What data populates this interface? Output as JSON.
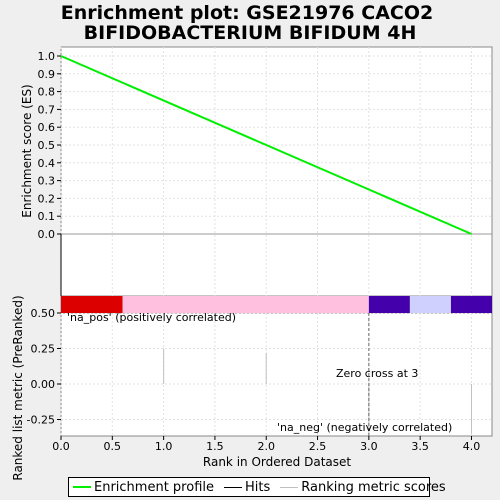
{
  "chart_data": {
    "type": "line",
    "title_line1": "Enrichment plot: GSE21976 CACO2",
    "title_line2": "BIFIDOBACTERIUM BIFIDUM 4H",
    "xlabel": "Rank in Ordered Dataset",
    "ylabel_top": "Enrichment score (ES)",
    "ylabel_bottom": "Ranked list metric (PreRanked)",
    "xlim": [
      0,
      4.2
    ],
    "x_ticks": [
      "0.0",
      "0.5",
      "1.0",
      "1.5",
      "2.0",
      "2.5",
      "3.0",
      "3.5",
      "4.0"
    ],
    "x_tick_values": [
      0,
      0.5,
      1,
      1.5,
      2,
      2.5,
      3,
      3.5,
      4
    ],
    "es_ylim": [
      0,
      1.05
    ],
    "es_ticks": [
      "0.0",
      "0.1",
      "0.2",
      "0.3",
      "0.4",
      "0.5",
      "0.6",
      "0.7",
      "0.8",
      "0.9",
      "1.0"
    ],
    "es_tick_values": [
      0,
      0.1,
      0.2,
      0.3,
      0.4,
      0.5,
      0.6,
      0.7,
      0.8,
      0.9,
      1.0
    ],
    "es_series": {
      "name": "Enrichment profile",
      "x": [
        0,
        4
      ],
      "y": [
        1.0,
        0.0
      ],
      "color": "#00ee00"
    },
    "hits_x": [
      0
    ],
    "metric_ylim": [
      -0.35,
      0.55
    ],
    "metric_ticks": [
      "0.50",
      "0.25",
      "0.00",
      "-0.25"
    ],
    "metric_tick_values": [
      0.5,
      0.25,
      0,
      -0.25
    ],
    "metric_points": [
      {
        "x": 1,
        "y": 0.25
      },
      {
        "x": 2,
        "y": 0.22
      },
      {
        "x": 3,
        "y": -0.35
      },
      {
        "x": 4,
        "y": -0.35
      }
    ],
    "color_bar": [
      {
        "from": 0,
        "to": 0.6,
        "color": "#dd0000"
      },
      {
        "from": 0.6,
        "to": 3.0,
        "color": "#ffc0e0"
      },
      {
        "from": 3.0,
        "to": 3.4,
        "color": "#4400aa"
      },
      {
        "from": 3.4,
        "to": 3.8,
        "color": "#d0d0ff"
      },
      {
        "from": 3.8,
        "to": 4.2,
        "color": "#4400aa"
      }
    ],
    "zero_cross_x": 3,
    "zero_cross_label": "Zero cross at 3",
    "pos_label": "'na_pos' (positively correlated)",
    "neg_label": "'na_neg' (negatively correlated)",
    "pos_color": "#cc0000",
    "neg_color": "#0000aa"
  },
  "legend": {
    "items": [
      {
        "label": "Enrichment profile",
        "color": "#00ee00"
      },
      {
        "label": "Hits",
        "color": "#000000"
      },
      {
        "label": "Ranking metric scores",
        "color": "#c0c0c0"
      }
    ]
  }
}
